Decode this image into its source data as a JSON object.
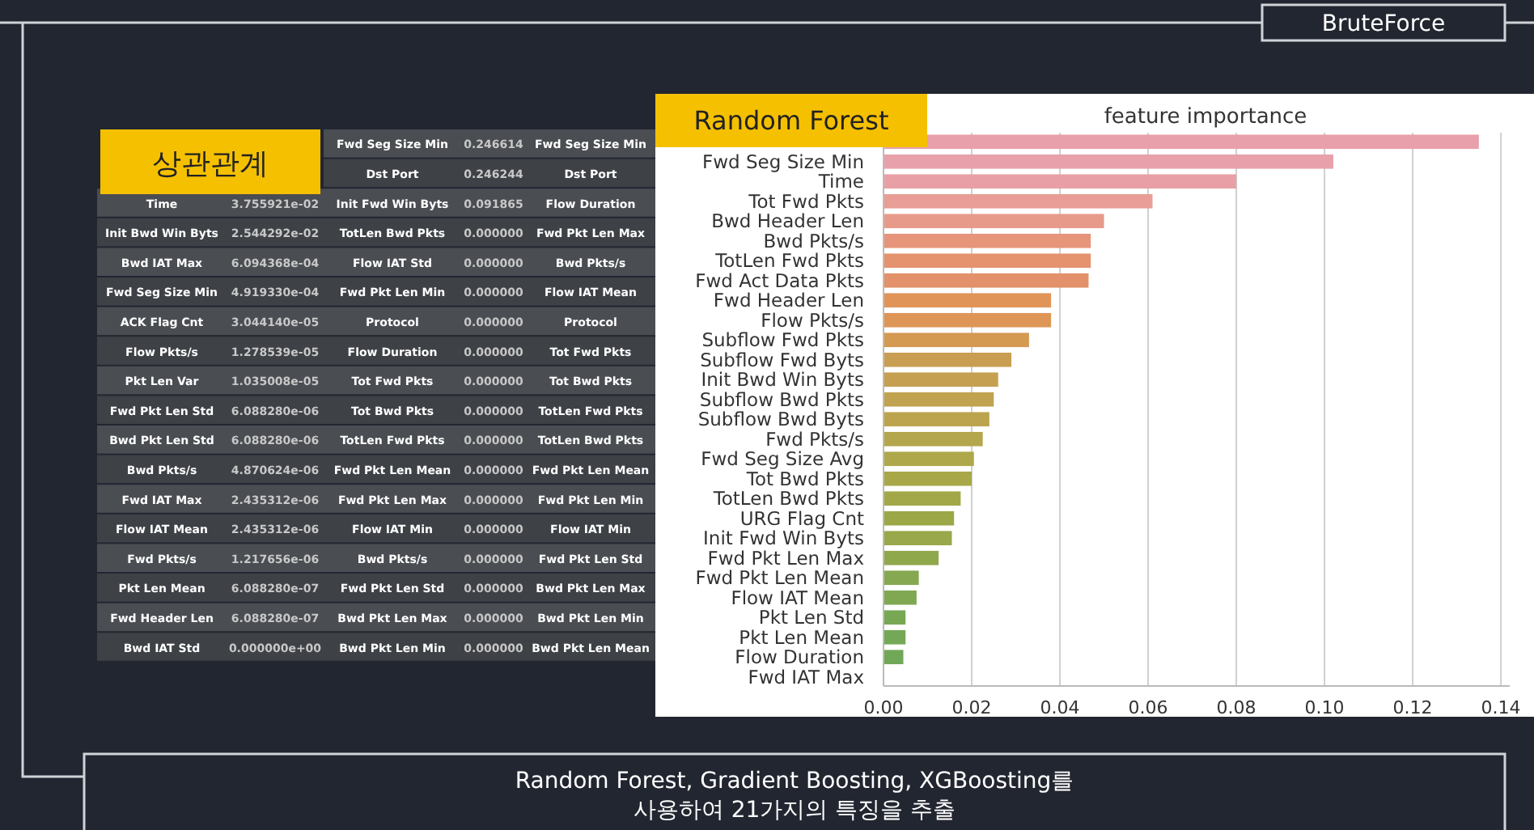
{
  "chart_data": [
    {
      "type": "other",
      "title": "상관관계",
      "annotations": [
        "Time",
        "3.755921e-02",
        "Init Bwd Win Byts",
        "2.544292e-02",
        "Bwd IAT Max",
        "6.094368e-04",
        "Fwd Seg Size Min",
        "4.919330e-04",
        "ACK Flag Cnt",
        "3.044140e-05",
        "Flow Pkts/s",
        "1.278539e-05",
        "Pkt Len Var",
        "1.035008e-05",
        "Fwd Pkt Len Std",
        "6.088280e-06",
        "Bwd Pkt Len Std",
        "6.088280e-06",
        "Bwd Pkts/s",
        "4.870624e-06",
        "Fwd IAT Max",
        "2.435312e-06",
        "Flow IAT Mean",
        "2.435312e-06",
        "Fwd Pkts/s",
        "1.217656e-06",
        "Pkt Len Mean",
        "6.088280e-07",
        "Fwd Header Len",
        "6.088280e-07",
        "Bwd IAT Std",
        "0.000000e+00"
      ]
    },
    {
      "type": "other",
      "annotations": [
        "Fwd Seg Size Min",
        "0.246614",
        "Dst Port",
        "0.246244",
        "Init Fwd Win Byts",
        "0.091865",
        "TotLen Bwd Pkts",
        "0.000000",
        "Flow IAT Std",
        "0.000000",
        "Fwd Pkt Len Min",
        "0.000000",
        "Protocol",
        "0.000000",
        "Flow Duration",
        "0.000000",
        "Tot Fwd Pkts",
        "0.000000",
        "Tot Bwd Pkts",
        "0.000000",
        "TotLen Fwd Pkts",
        "0.000000",
        "Fwd Pkt Len Mean",
        "0.000000",
        "Fwd Pkt Len Max",
        "0.000000",
        "Flow IAT Min",
        "0.000000",
        "Bwd Pkts/s",
        "0.000000",
        "Fwd Pkt Len Std",
        "0.000000",
        "Bwd Pkt Len Max",
        "0.000000",
        "Bwd Pkt Len Min",
        "0.000000"
      ]
    },
    {
      "type": "other",
      "annotations": [
        "Fwd Seg Size Min",
        "Dst Port",
        "Flow Duration",
        "Fwd Pkt Len Max",
        "Bwd Pkts/s",
        "Flow IAT Mean",
        "Protocol",
        "Tot Fwd Pkts",
        "Tot Bwd Pkts",
        "TotLen Fwd Pkts",
        "TotLen Bwd Pkts",
        "Fwd Pkt Len Mean",
        "Fwd Pkt Len Min",
        "Flow IAT Min",
        "Fwd Pkt Len Std",
        "Bwd Pkt Len Max",
        "Bwd Pkt Len Min",
        "Bwd Pkt Len Mean"
      ]
    },
    {
      "type": "bar",
      "orientation": "horizontal",
      "title": "feature importance",
      "subtitle": "Random Forest",
      "annotations": [
        "BruteForce",
        "Random Forest, Gradient Boosting, XGBoosting를\n사용하여 21가지의 특징을 추출"
      ],
      "categories": [
        null,
        "Fwd Seg Size Min",
        "Time",
        "Tot Fwd Pkts",
        "Bwd Header Len",
        "Bwd Pkts/s",
        "TotLen Fwd Pkts",
        "Fwd Act Data Pkts",
        "Fwd Header Len",
        "Flow Pkts/s",
        "Subflow Fwd Pkts",
        "Subflow Fwd Byts",
        "Init Bwd Win Byts",
        "Subflow Bwd Pkts",
        "Subflow Bwd Byts",
        "Fwd Pkts/s",
        "Fwd Seg Size Avg",
        "Tot Bwd Pkts",
        "TotLen Bwd Pkts",
        "URG Flag Cnt",
        "Init Fwd Win Byts",
        "Fwd Pkt Len Max",
        "Fwd Pkt Len Mean",
        "Flow IAT Mean",
        "Pkt Len Std",
        "Pkt Len Mean",
        "Flow Duration",
        "Fwd IAT Max"
      ],
      "values": [
        0.135,
        0.102,
        0.08,
        0.061,
        0.05,
        0.047,
        0.047,
        0.0465,
        0.038,
        0.038,
        0.033,
        0.029,
        0.026,
        0.025,
        0.024,
        0.0225,
        0.0205,
        0.02,
        0.0175,
        0.016,
        0.0155,
        0.0125,
        0.008,
        0.0075,
        0.005,
        0.005,
        0.0045,
        0
      ],
      "colors": [
        "#e8a0aa",
        "#e8a0aa",
        "#e8a0a6",
        "#e89e96",
        "#e89a8a",
        "#e6957a",
        "#e4936e",
        "#e2916a",
        "#e09458",
        "#de9656",
        "#d49a52",
        "#c99e52",
        "#c4a050",
        "#c0a250",
        "#bca44e",
        "#b4a64c",
        "#aea84a",
        "#a8a848",
        "#a2a848",
        "#9ca848",
        "#98a84a",
        "#90a84c",
        "#86a850",
        "#80a852",
        "#78a854",
        "#74a856",
        "#70a858",
        "#6aa85a"
      ],
      "xlim": [
        0,
        0.142
      ],
      "xticks": [
        {
          "value": 0,
          "label": "0.00"
        },
        {
          "value": 0.02,
          "label": "0.02"
        },
        {
          "value": 0.04,
          "label": "0.04"
        },
        {
          "value": 0.06,
          "label": "0.06"
        },
        {
          "value": 0.08,
          "label": "0.08"
        },
        {
          "value": 0.1,
          "label": "0.10"
        },
        {
          "value": 0.12,
          "label": "0.12"
        },
        {
          "value": 0.14,
          "label": "0.14"
        }
      ],
      "grid": "x"
    }
  ]
}
